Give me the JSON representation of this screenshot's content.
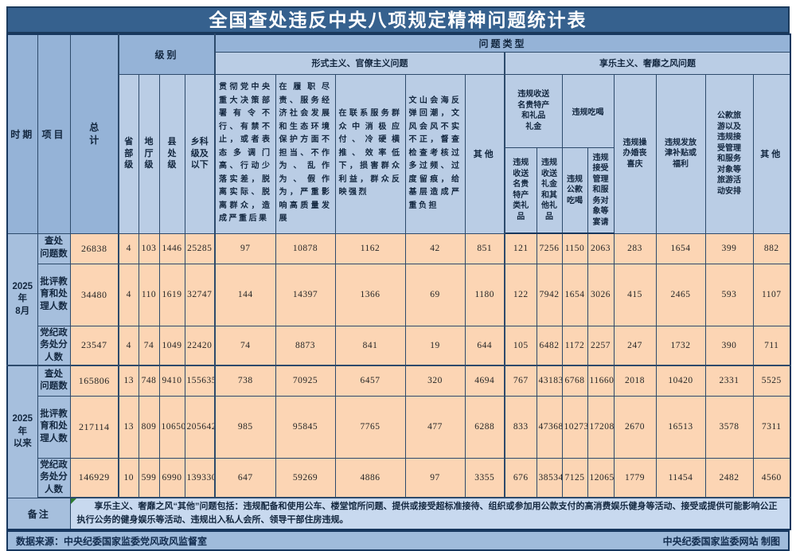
{
  "title": "全国查处违反中央八项规定精神问题统计表",
  "header": {
    "period": "时期",
    "item": "项目",
    "total": "总\n计",
    "level": "级别",
    "problem_type": "问题类型",
    "levels": [
      "省\n部\n级",
      "地\n厅\n级",
      "县\n处\n级",
      "乡科\n级及\n以下"
    ],
    "formalism": {
      "label": "形式主义、官僚主义问题",
      "columns": [
        "贯彻党中央重大决策部署有令不行、有禁不止，或者表态多调门高、行动少落实差，脱离实际、脱离群众，造成严重后果",
        "在履职尽责、服务经济社会发展和生态环境保护方面不担当、不作为、乱作为、假作为，严重影响高质量发展",
        "在联系服务群众中消极应付、冷硬横推、效率低下，损害群众利益，群众反映强烈",
        "文山会海反弹回潮，文风会风不实不正，督查检查考核过多过频、过度留痕，给基层造成严重负担",
        "其他"
      ]
    },
    "hedonism": {
      "label": "享乐主义、奢靡之风问题",
      "gift_group": {
        "label": "违规收送\n名贵特产\n和礼品\n礼金",
        "children": [
          "违规\n收送\n名贵\n特产\n类礼\n品",
          "违规\n收送\n礼金\n和其\n他礼\n品"
        ]
      },
      "dining_group": {
        "label": "违规吃喝",
        "children": [
          "违规\n公款\n吃喝",
          "违规\n接受\n管理\n和服\n务对\n象等\n宴请"
        ]
      },
      "columns": [
        "违规操\n办婚丧\n喜庆",
        "违规发放\n津补贴或\n福利",
        "公款旅\n游以及\n违规接\n受管理\n和服务\n对象等\n旅游活\n动安排",
        "其他"
      ]
    }
  },
  "sections": [
    {
      "period": "2025年\n8月",
      "rows": [
        {
          "label": "查处\n问题数",
          "values": [
            26838,
            4,
            103,
            1446,
            25285,
            97,
            10878,
            1162,
            42,
            851,
            121,
            7256,
            1150,
            2063,
            283,
            1654,
            399,
            882
          ]
        },
        {
          "label": "批评教\n育和处\n理人数",
          "values": [
            34480,
            4,
            110,
            1619,
            32747,
            144,
            14397,
            1366,
            69,
            1180,
            122,
            7942,
            1654,
            3026,
            415,
            2465,
            593,
            1107
          ]
        },
        {
          "label": "党纪政\n务处分\n人数",
          "values": [
            23547,
            4,
            74,
            1049,
            22420,
            74,
            8873,
            841,
            19,
            644,
            105,
            6482,
            1172,
            2257,
            247,
            1732,
            390,
            711
          ]
        }
      ]
    },
    {
      "period": "2025年\n以来",
      "rows": [
        {
          "label": "查处\n问题数",
          "values": [
            165806,
            13,
            748,
            9410,
            155635,
            738,
            70925,
            6457,
            320,
            4694,
            767,
            43183,
            6768,
            11660,
            2018,
            10420,
            2331,
            5525
          ]
        },
        {
          "label": "批评教\n育和处\n理人数",
          "values": [
            217114,
            13,
            809,
            10650,
            205642,
            985,
            95845,
            7765,
            477,
            6288,
            833,
            47368,
            10273,
            17208,
            2670,
            16513,
            3578,
            7311
          ]
        },
        {
          "label": "党纪政\n务处分\n人数",
          "values": [
            146929,
            10,
            599,
            6990,
            139330,
            647,
            59269,
            4886,
            97,
            3355,
            676,
            38534,
            7125,
            12065,
            1779,
            11454,
            2482,
            4560
          ]
        }
      ]
    }
  ],
  "notes": {
    "label": "备注",
    "text": "享乐主义、奢靡之风“其他”问题包括：违规配备和使用公车、楼堂馆所问题、提供或接受超标准接待、组织或参加用公款支付的高消费娱乐健身等活动、接受或提供可能影响公正执行公务的健身娱乐等活动、违规出入私人会所、领导干部住房违规。"
  },
  "footer": {
    "source": "数据来源：中央纪委国家监委党风政风监督室",
    "credit": "中央纪委国家监委网站 制图"
  },
  "colors": {
    "title_bg": "#36618E",
    "header_mid": "#95B3D7",
    "header_light": "#BACDE5",
    "data_bg": "#FCD5B4",
    "note_bg": "#C8D9EF",
    "footer_bg": "#9FBBDB",
    "border": "#17375E",
    "error_marker": "#2f7d32"
  }
}
